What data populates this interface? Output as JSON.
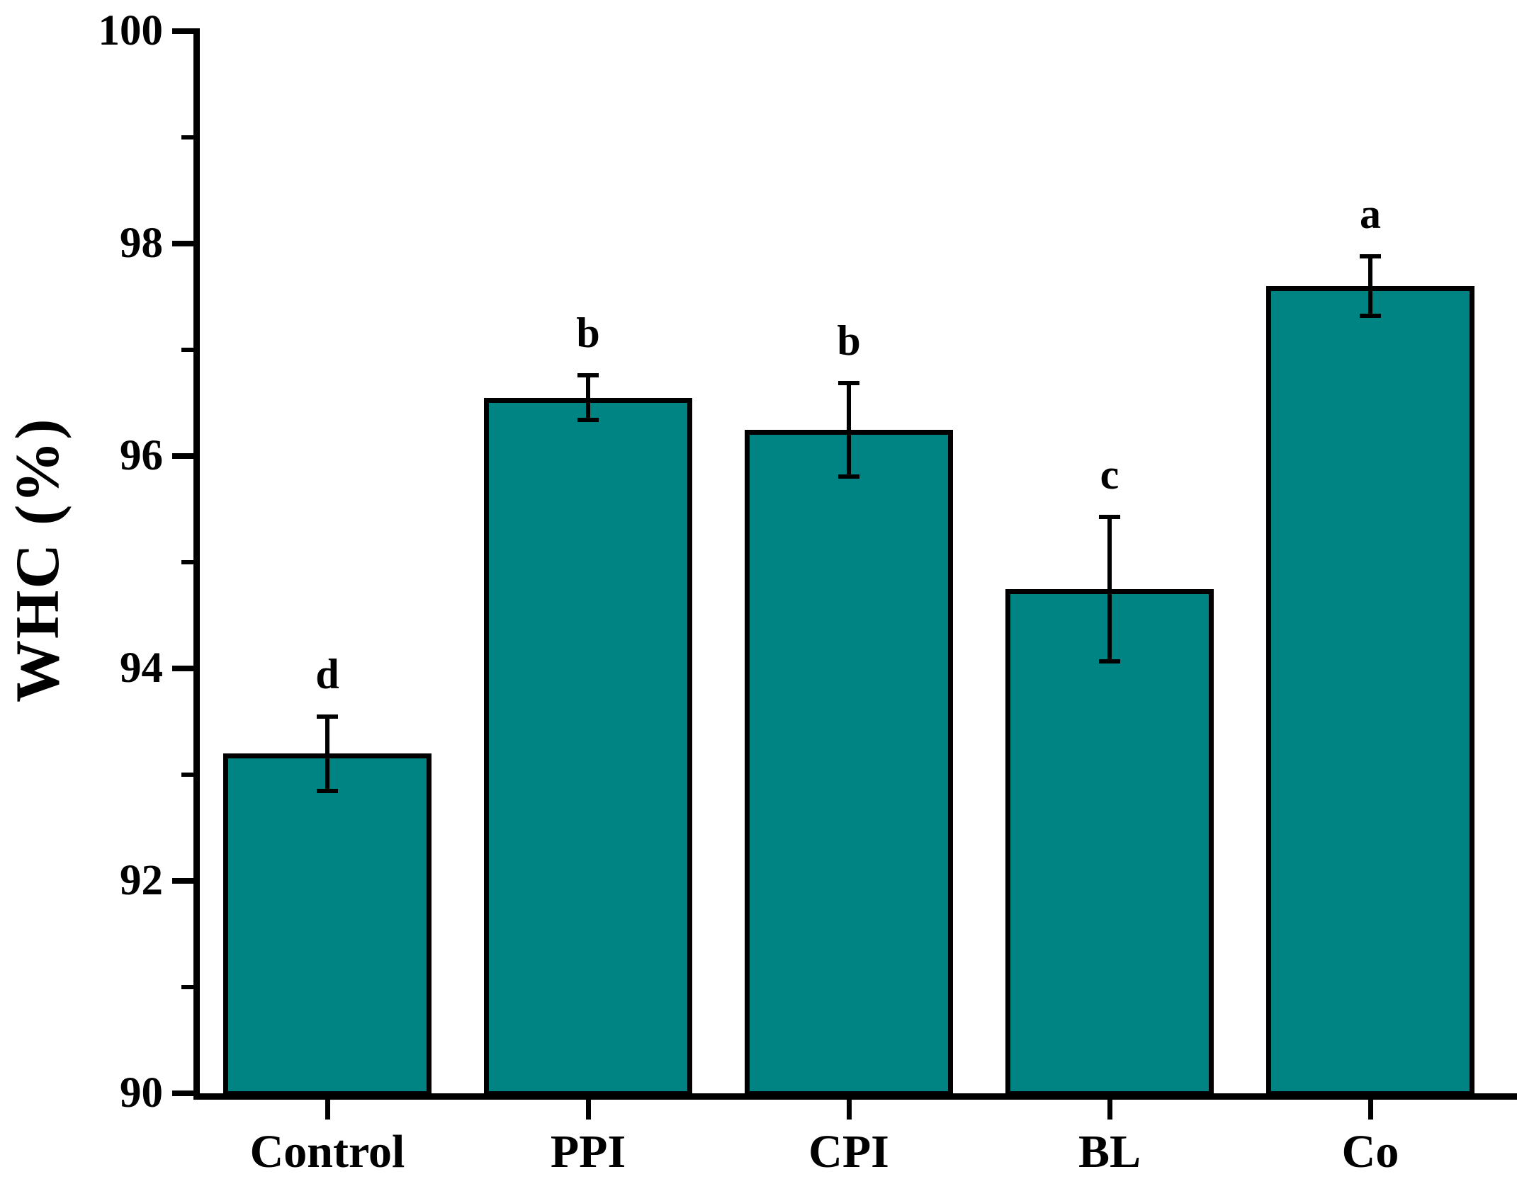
{
  "figure": {
    "background_color": "#ffffff",
    "text_color": "#000000"
  },
  "chart_data": {
    "type": "bar",
    "title": "",
    "categories": [
      "Control",
      "PPI",
      "CPI",
      "BL",
      "Co"
    ],
    "values": [
      93.2,
      96.55,
      96.25,
      94.75,
      97.6
    ],
    "error_bars": [
      0.35,
      0.21,
      0.44,
      0.68,
      0.28
    ],
    "significance_letters": [
      "d",
      "b",
      "b",
      "c",
      "a"
    ],
    "xlabel": "",
    "ylabel": "WHC (%)",
    "ylim": [
      90,
      100
    ],
    "y_major_ticks": [
      90,
      92,
      94,
      96,
      98,
      100
    ],
    "y_major_tick_labels": [
      "90",
      "92",
      "94",
      "96",
      "98",
      "100"
    ],
    "y_minor_ticks": [
      91,
      93,
      95,
      97,
      99
    ],
    "grid": false,
    "legend": false,
    "bar_fill_color": "#008383",
    "bar_edge_color": "#000000",
    "error_bar_color": "#000000",
    "axis_color": "#000000"
  }
}
